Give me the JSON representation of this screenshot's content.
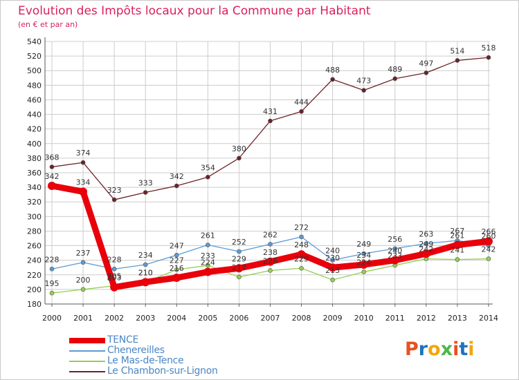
{
  "header": {
    "title": "Evolution des Impôts locaux pour la Commune par Habitant",
    "subtitle": "(en € et par an)"
  },
  "logo": {
    "text": "Proxiti",
    "letter_colors": [
      "#e8501e",
      "#1e73be",
      "#f2a60c",
      "#4bb848",
      "#e8501e",
      "#1e73be",
      "#f2a60c"
    ]
  },
  "colors": {
    "title": "#d9215b",
    "axis_text": "#222222",
    "grid": "#cccccc",
    "legend_text": "#4a86c5"
  },
  "chart_data": {
    "type": "line",
    "title": "Evolution des Impôts locaux pour la Commune par Habitant",
    "subtitle": "(en € et par an)",
    "x": [
      "2000",
      "2001",
      "2002",
      "2003",
      "2004",
      "2005",
      "2006",
      "2007",
      "2008",
      "2009",
      "2010",
      "2011",
      "2012",
      "2013",
      "2014"
    ],
    "ylim": [
      180,
      540
    ],
    "ytick_step": 20,
    "grid": true,
    "legend_position": "bottom-left",
    "series": [
      {
        "name": "TENCE",
        "color": "#e8000b",
        "emphasis": true,
        "values": [
          342,
          334,
          203,
          210,
          216,
          224,
          229,
          238,
          248,
          230,
          234,
          240,
          249,
          261,
          266
        ]
      },
      {
        "name": "Chenereilles",
        "color": "#5b9bd5",
        "emphasis": false,
        "values": [
          228,
          237,
          228,
          234,
          247,
          261,
          252,
          262,
          272,
          240,
          249,
          256,
          263,
          267,
          260
        ]
      },
      {
        "name": "Le Mas-de-Tence",
        "color": "#92d050",
        "emphasis": false,
        "values": [
          195,
          200,
          205,
          210,
          227,
          233,
          217,
          226,
          229,
          213,
          224,
          233,
          242,
          241,
          242
        ]
      },
      {
        "name": "Le Chambon-sur-Lignon",
        "color": "#6b2226",
        "emphasis": false,
        "values": [
          368,
          374,
          323,
          333,
          342,
          354,
          380,
          431,
          444,
          488,
          473,
          489,
          497,
          514,
          518
        ]
      }
    ]
  }
}
